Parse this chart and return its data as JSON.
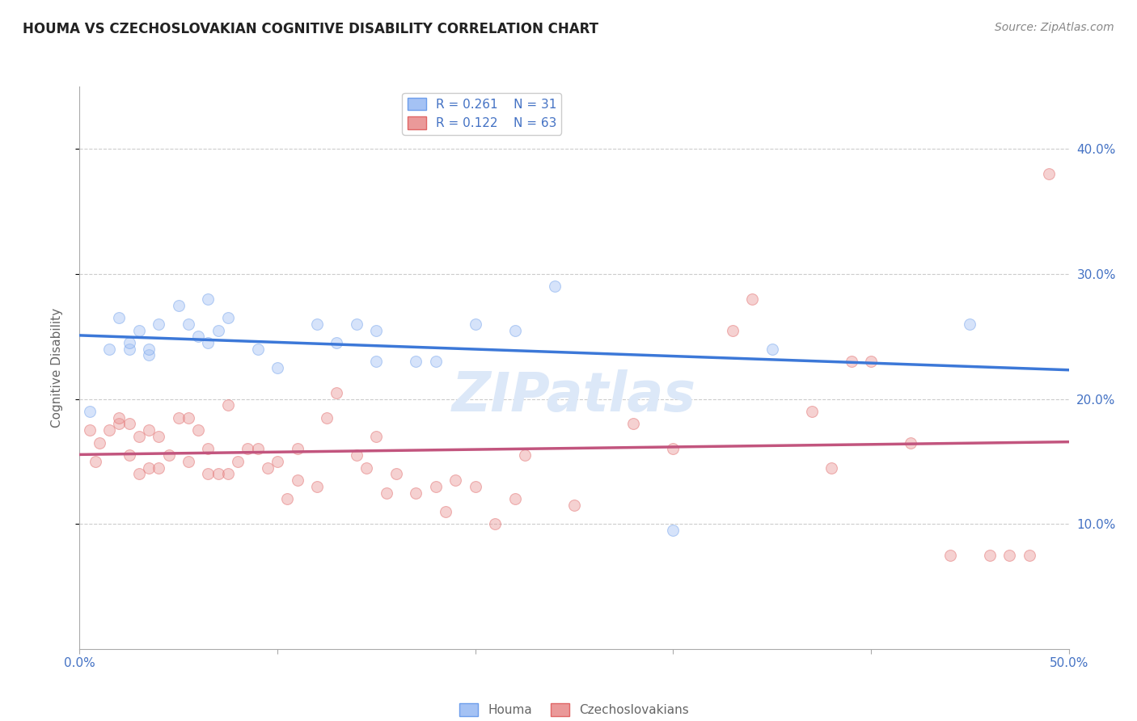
{
  "title": "HOUMA VS CZECHOSLOVAKIAN COGNITIVE DISABILITY CORRELATION CHART",
  "source": "Source: ZipAtlas.com",
  "ylabel": "Cognitive Disability",
  "right_yticks": [
    10.0,
    20.0,
    30.0,
    40.0
  ],
  "houma_R": 0.261,
  "houma_N": 31,
  "czech_R": 0.122,
  "czech_N": 63,
  "houma_color": "#a4c2f4",
  "czech_color": "#ea9999",
  "houma_edge_color": "#6d9eeb",
  "czech_edge_color": "#e06666",
  "trendline_houma_color": "#3c78d8",
  "trendline_czech_color": "#c2557e",
  "legend_label_houma": "Houma",
  "legend_label_czech": "Czechoslovakians",
  "houma_x": [
    0.5,
    1.5,
    2.0,
    2.5,
    2.5,
    3.0,
    3.5,
    3.5,
    4.0,
    5.0,
    5.5,
    6.0,
    6.5,
    6.5,
    7.0,
    7.5,
    9.0,
    10.0,
    12.0,
    13.0,
    14.0,
    15.0,
    15.0,
    17.0,
    18.0,
    20.0,
    22.0,
    24.0,
    30.0,
    35.0,
    45.0
  ],
  "houma_y": [
    19.0,
    24.0,
    26.5,
    24.0,
    24.5,
    25.5,
    23.5,
    24.0,
    26.0,
    27.5,
    26.0,
    25.0,
    24.5,
    28.0,
    25.5,
    26.5,
    24.0,
    22.5,
    26.0,
    24.5,
    26.0,
    23.0,
    25.5,
    23.0,
    23.0,
    26.0,
    25.5,
    29.0,
    9.5,
    24.0,
    26.0
  ],
  "czech_x": [
    0.5,
    0.8,
    1.0,
    1.5,
    2.0,
    2.0,
    2.5,
    2.5,
    3.0,
    3.0,
    3.5,
    3.5,
    4.0,
    4.0,
    4.5,
    5.0,
    5.5,
    5.5,
    6.0,
    6.5,
    6.5,
    7.0,
    7.5,
    7.5,
    8.0,
    8.5,
    9.0,
    9.5,
    10.0,
    10.5,
    11.0,
    11.0,
    12.0,
    12.5,
    13.0,
    14.0,
    14.5,
    15.0,
    15.5,
    16.0,
    17.0,
    18.0,
    18.5,
    19.0,
    20.0,
    21.0,
    22.0,
    22.5,
    25.0,
    28.0,
    30.0,
    33.0,
    34.0,
    37.0,
    38.0,
    39.0,
    40.0,
    42.0,
    44.0,
    46.0,
    47.0,
    48.0,
    49.0
  ],
  "czech_y": [
    17.5,
    15.0,
    16.5,
    17.5,
    18.0,
    18.5,
    15.5,
    18.0,
    17.0,
    14.0,
    17.5,
    14.5,
    17.0,
    14.5,
    15.5,
    18.5,
    15.0,
    18.5,
    17.5,
    16.0,
    14.0,
    14.0,
    14.0,
    19.5,
    15.0,
    16.0,
    16.0,
    14.5,
    15.0,
    12.0,
    13.5,
    16.0,
    13.0,
    18.5,
    20.5,
    15.5,
    14.5,
    17.0,
    12.5,
    14.0,
    12.5,
    13.0,
    11.0,
    13.5,
    13.0,
    10.0,
    12.0,
    15.5,
    11.5,
    18.0,
    16.0,
    25.5,
    28.0,
    19.0,
    14.5,
    23.0,
    23.0,
    16.5,
    7.5,
    7.5,
    7.5,
    7.5,
    38.0
  ],
  "xlim": [
    0,
    50
  ],
  "ylim": [
    0,
    45
  ],
  "background_color": "#ffffff",
  "grid_color": "#cccccc",
  "watermark": "ZIPatlas",
  "watermark_color": "#dce8f8",
  "marker_size": 100,
  "marker_alpha": 0.45
}
